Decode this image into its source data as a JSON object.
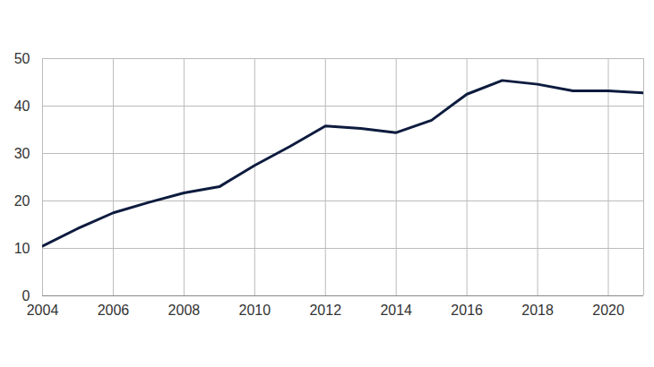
{
  "chart_data": {
    "type": "line",
    "x": [
      2004,
      2005,
      2006,
      2007,
      2008,
      2009,
      2010,
      2011,
      2012,
      2013,
      2014,
      2015,
      2016,
      2017,
      2018,
      2019,
      2020,
      2021
    ],
    "values": [
      10.5,
      14.2,
      17.5,
      19.7,
      21.7,
      23.0,
      27.5,
      31.5,
      35.8,
      35.3,
      34.4,
      37.0,
      42.5,
      45.4,
      44.6,
      43.2,
      43.2,
      42.8
    ],
    "color": "#0d1b3e",
    "xlim": [
      2004,
      2021
    ],
    "xticks": [
      2004,
      2006,
      2008,
      2010,
      2012,
      2014,
      2016,
      2018,
      2020
    ],
    "ylim": [
      0,
      50
    ],
    "yticks": [
      0,
      10,
      20,
      30,
      40,
      50
    ],
    "grid": true
  }
}
